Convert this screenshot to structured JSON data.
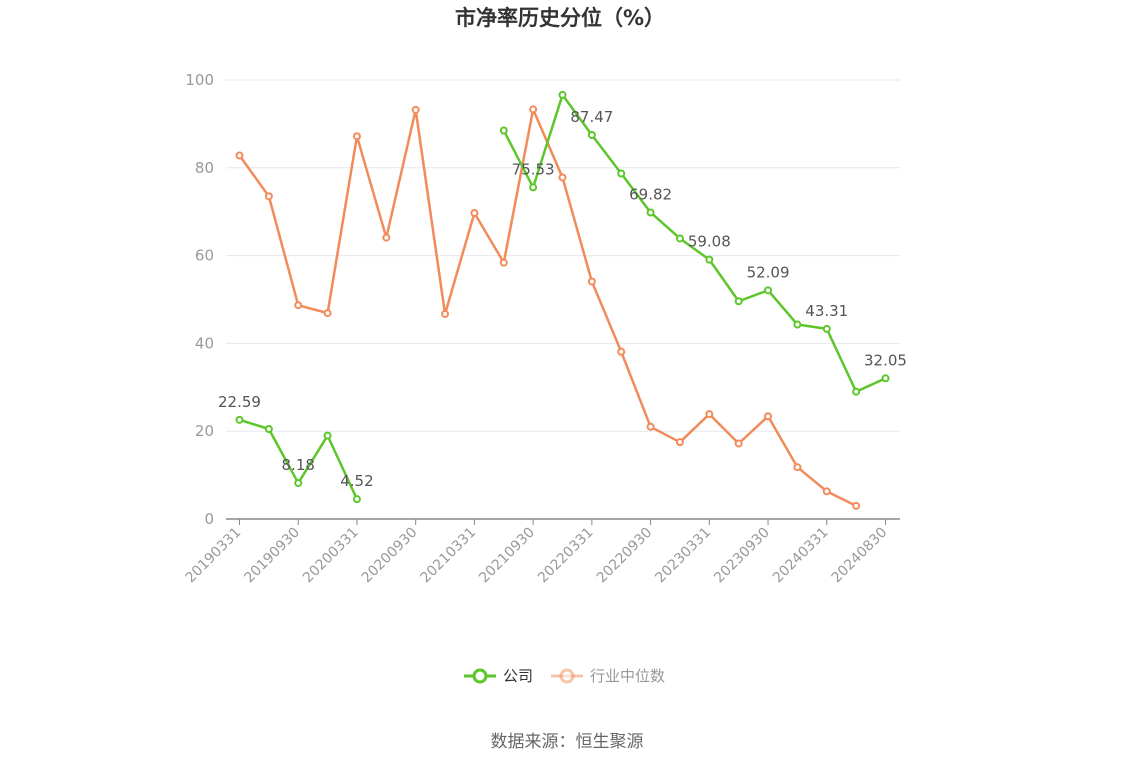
{
  "chart_data": {
    "type": "line",
    "title": "市净率历史分位（%）",
    "source": "数据来源：恒生聚源",
    "ylim": [
      0,
      100
    ],
    "yticks": [
      0,
      20,
      40,
      60,
      80,
      100
    ],
    "x_tick_labels": [
      "20190331",
      "20190930",
      "20200331",
      "20200930",
      "20210331",
      "20210930",
      "20220331",
      "20220930",
      "20230331",
      "20230930",
      "20240331",
      "20240830"
    ],
    "grid": true,
    "legend_position": "bottom",
    "series": [
      {
        "name": "公司",
        "color": "#5dc62b",
        "values": [
          22.59,
          20.5,
          8.18,
          19.0,
          4.52,
          null,
          null,
          null,
          null,
          88.5,
          75.53,
          96.6,
          87.47,
          78.7,
          69.82,
          63.9,
          59.08,
          49.6,
          52.09,
          44.3,
          43.31,
          29.0,
          32.05
        ],
        "labels": [
          {
            "index": 0,
            "text": "22.59"
          },
          {
            "index": 2,
            "text": "8.18"
          },
          {
            "index": 4,
            "text": "4.52"
          },
          {
            "index": 10,
            "text": "75.53"
          },
          {
            "index": 12,
            "text": "87.47"
          },
          {
            "index": 14,
            "text": "69.82"
          },
          {
            "index": 16,
            "text": "59.08"
          },
          {
            "index": 18,
            "text": "52.09"
          },
          {
            "index": 20,
            "text": "43.31"
          },
          {
            "index": 22,
            "text": "32.05"
          }
        ]
      },
      {
        "name": "行业中位数",
        "color": "#f28b5a",
        "values": [
          82.8,
          73.5,
          48.7,
          46.9,
          87.2,
          64.1,
          93.2,
          46.7,
          69.7,
          58.4,
          93.3,
          77.8,
          54.1,
          38.1,
          21.0,
          17.5,
          23.9,
          17.2,
          23.4,
          11.8,
          6.3,
          3.0,
          null
        ]
      }
    ]
  }
}
